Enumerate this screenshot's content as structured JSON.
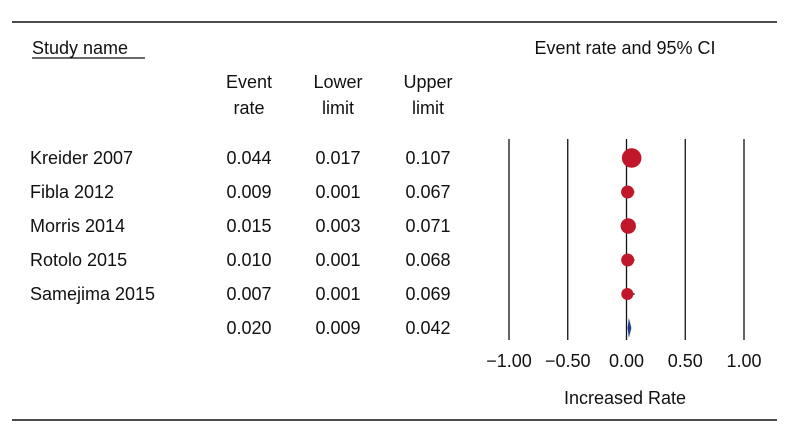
{
  "header": {
    "study_name": "Study name",
    "chart_title": "Event rate and 95% CI",
    "col_event": [
      "Event",
      "rate"
    ],
    "col_lower": [
      "Lower",
      "limit"
    ],
    "col_upper": [
      "Upper",
      "limit"
    ]
  },
  "chart_data": {
    "type": "forest",
    "title": "Event rate and 95% CI",
    "xlabel": "Increased Rate",
    "xlim": [
      -1.0,
      1.0
    ],
    "x_ticks": [
      -1.0,
      -0.5,
      0.0,
      0.5,
      1.0
    ],
    "x_tick_labels": [
      "−1.00",
      "−0.50",
      "0.00",
      "0.50",
      "1.00"
    ],
    "studies": [
      {
        "name": "Kreider 2007",
        "event_rate": "0.044",
        "lower": "0.017",
        "upper": "0.107",
        "weight": 3.0
      },
      {
        "name": "Fibla 2012",
        "event_rate": "0.009",
        "lower": "0.001",
        "upper": "0.067",
        "weight": 1.0
      },
      {
        "name": "Morris 2014",
        "event_rate": "0.015",
        "lower": "0.003",
        "upper": "0.071",
        "weight": 1.6
      },
      {
        "name": "Rotolo 2015",
        "event_rate": "0.010",
        "lower": "0.001",
        "upper": "0.068",
        "weight": 1.0
      },
      {
        "name": "Samejima 2015",
        "event_rate": "0.007",
        "lower": "0.001",
        "upper": "0.069",
        "weight": 0.8
      }
    ],
    "summary": {
      "name": "",
      "event_rate": "0.020",
      "lower": "0.009",
      "upper": "0.042"
    },
    "colors": {
      "study_marker": "#c0182a",
      "summary_diamond": "#1f3f8f",
      "lines": "#111111"
    }
  }
}
